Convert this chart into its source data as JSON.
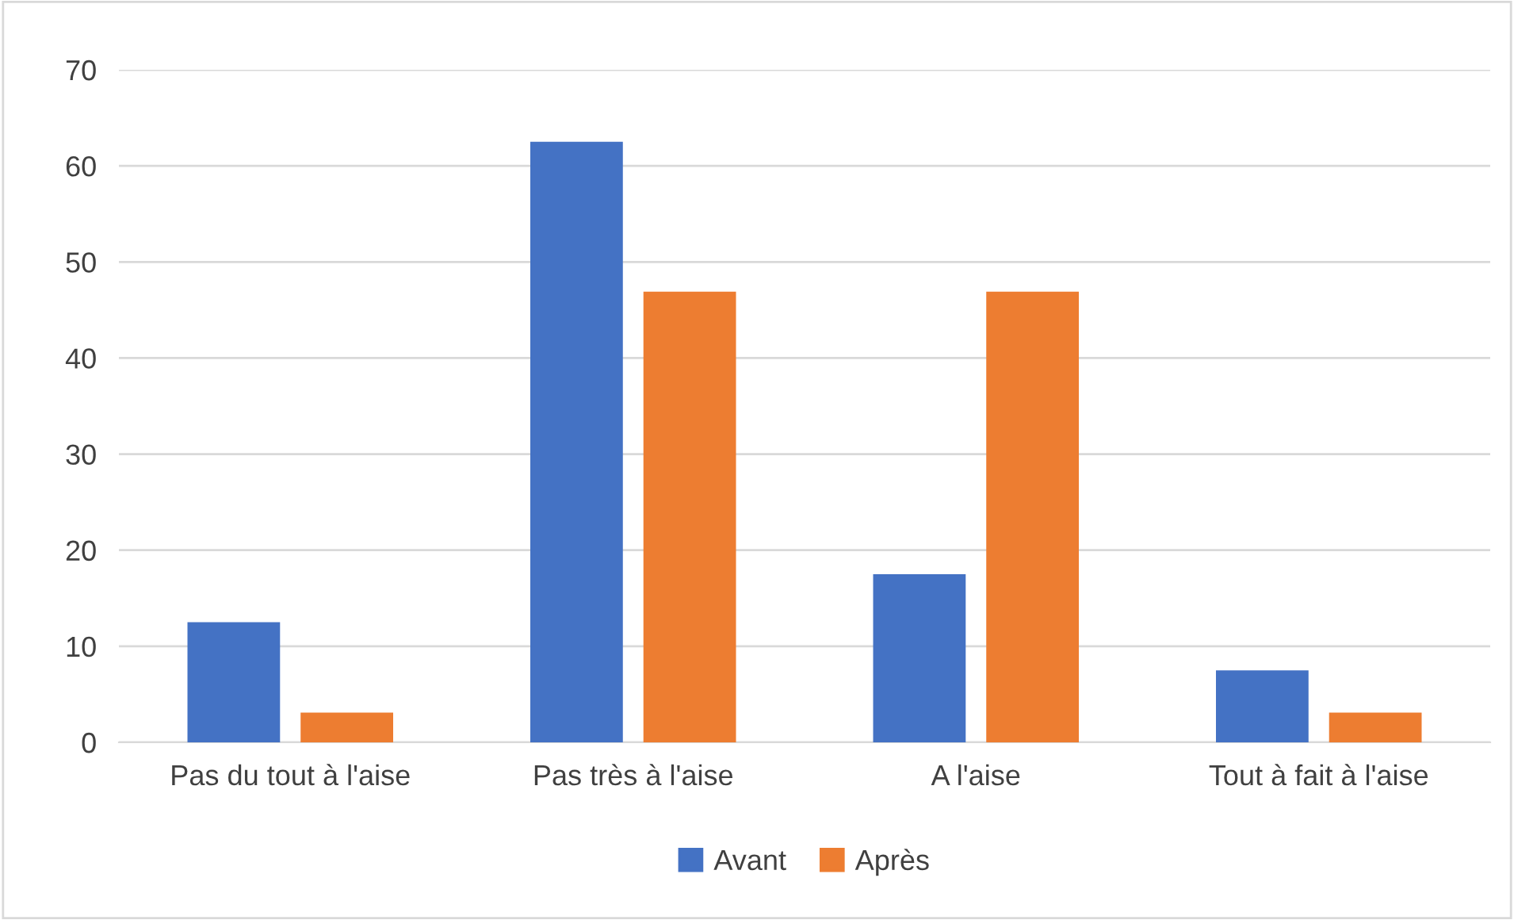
{
  "chart_data": {
    "type": "bar",
    "categories": [
      "Pas du tout à l'aise",
      "Pas très à l'aise",
      "A l'aise",
      "Tout à fait à l'aise"
    ],
    "series": [
      {
        "name": "Avant",
        "color": "#4472c4",
        "values": [
          12.5,
          62.5,
          17.5,
          7.5
        ]
      },
      {
        "name": "Après",
        "color": "#ed7d31",
        "values": [
          3.1,
          46.9,
          46.9,
          3.1
        ]
      }
    ],
    "ylim": [
      0,
      70
    ],
    "yticks": [
      0,
      10,
      20,
      30,
      40,
      50,
      60,
      70
    ],
    "grid": "y",
    "legend": "bottom"
  }
}
